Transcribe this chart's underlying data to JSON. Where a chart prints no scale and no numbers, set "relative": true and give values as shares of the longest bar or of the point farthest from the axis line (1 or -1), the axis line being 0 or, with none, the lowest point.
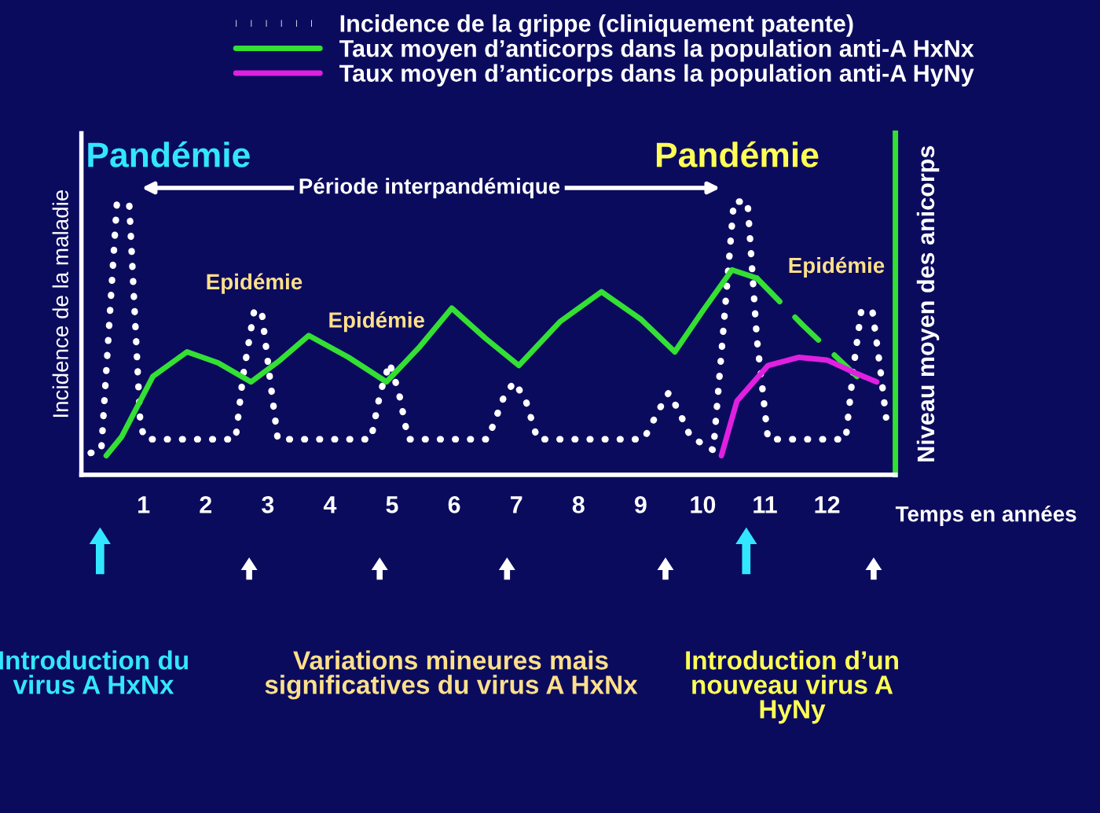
{
  "chart_data": {
    "type": "line",
    "relative": true,
    "xlabel": "Temps en années",
    "ylabel": "Incidence de la maladie",
    "y2label": "Niveau moyen des anicorps",
    "xlim": [
      0,
      13.1
    ],
    "xticks": [
      1,
      2,
      3,
      4,
      5,
      6,
      7,
      8,
      9,
      10,
      11,
      12
    ],
    "tick_labels": "x",
    "grid": false,
    "legend": "top",
    "marker": "none",
    "series": [
      {
        "name": "Incidence de la grippe (cliniquement patente)",
        "color": "#ffffff",
        "line_style": "dotted",
        "x": [
          0.15,
          0.32,
          0.57,
          0.77,
          0.95,
          1.03,
          1.53,
          2.48,
          2.6,
          2.78,
          2.9,
          3.03,
          3.16,
          4.66,
          4.81,
          4.96,
          5.11,
          5.26,
          6.54,
          6.79,
          6.96,
          7.14,
          7.34,
          9.05,
          9.3,
          9.45,
          9.6,
          9.8,
          10.17,
          10.32,
          10.5,
          10.72,
          10.87,
          11.05,
          12.3,
          12.43,
          12.55,
          12.73,
          12.85,
          12.95
        ],
        "values": [
          0.08,
          0.09,
          0.99,
          0.99,
          0.18,
          0.13,
          0.13,
          0.13,
          0.36,
          0.6,
          0.6,
          0.36,
          0.13,
          0.13,
          0.3,
          0.41,
          0.3,
          0.13,
          0.13,
          0.28,
          0.34,
          0.28,
          0.13,
          0.13,
          0.24,
          0.3,
          0.24,
          0.14,
          0.09,
          0.5,
          1.0,
          1.0,
          0.5,
          0.13,
          0.13,
          0.4,
          0.6,
          0.6,
          0.4,
          0.21
        ]
      },
      {
        "name": "Taux moyen d’anticorps dans la population anti-A HxNx",
        "color": "#33e033",
        "line_style": "solid",
        "x": [
          0.4,
          0.65,
          1.15,
          1.7,
          2.2,
          2.73,
          3.2,
          3.66,
          4.3,
          4.91,
          5.45,
          5.96,
          6.5,
          7.04,
          7.7,
          8.37,
          9.0,
          9.55,
          10.0,
          10.47,
          10.87
        ],
        "values": [
          0.07,
          0.14,
          0.36,
          0.45,
          0.41,
          0.34,
          0.42,
          0.51,
          0.43,
          0.34,
          0.47,
          0.61,
          0.5,
          0.4,
          0.56,
          0.67,
          0.57,
          0.45,
          0.6,
          0.75,
          0.72
        ]
      },
      {
        "color": "#33e033",
        "line_style": "dashed",
        "x": [
          10.87,
          11.6,
          12.48
        ],
        "values": [
          0.72,
          0.55,
          0.36
        ]
      },
      {
        "name": "Taux moyen d’anticorps dans la population anti-A HyNy",
        "color": "#e020e0",
        "line_style": "solid",
        "x": [
          10.3,
          10.55,
          11.05,
          11.55,
          12.0,
          12.48,
          12.8
        ],
        "values": [
          0.07,
          0.27,
          0.4,
          0.43,
          0.42,
          0.37,
          0.34
        ]
      }
    ],
    "annotations": [
      "Pandémie",
      "Pandémie",
      "Période interpandémique",
      "Epidémie",
      "Epidémie",
      "Epidémie",
      "Introduction du\nvirus A HxNx",
      "Variations mineures mais\nsignificatives du virus A HxNx",
      "Introduction d’un\nnouveau virus A\nHyNy"
    ]
  }
}
